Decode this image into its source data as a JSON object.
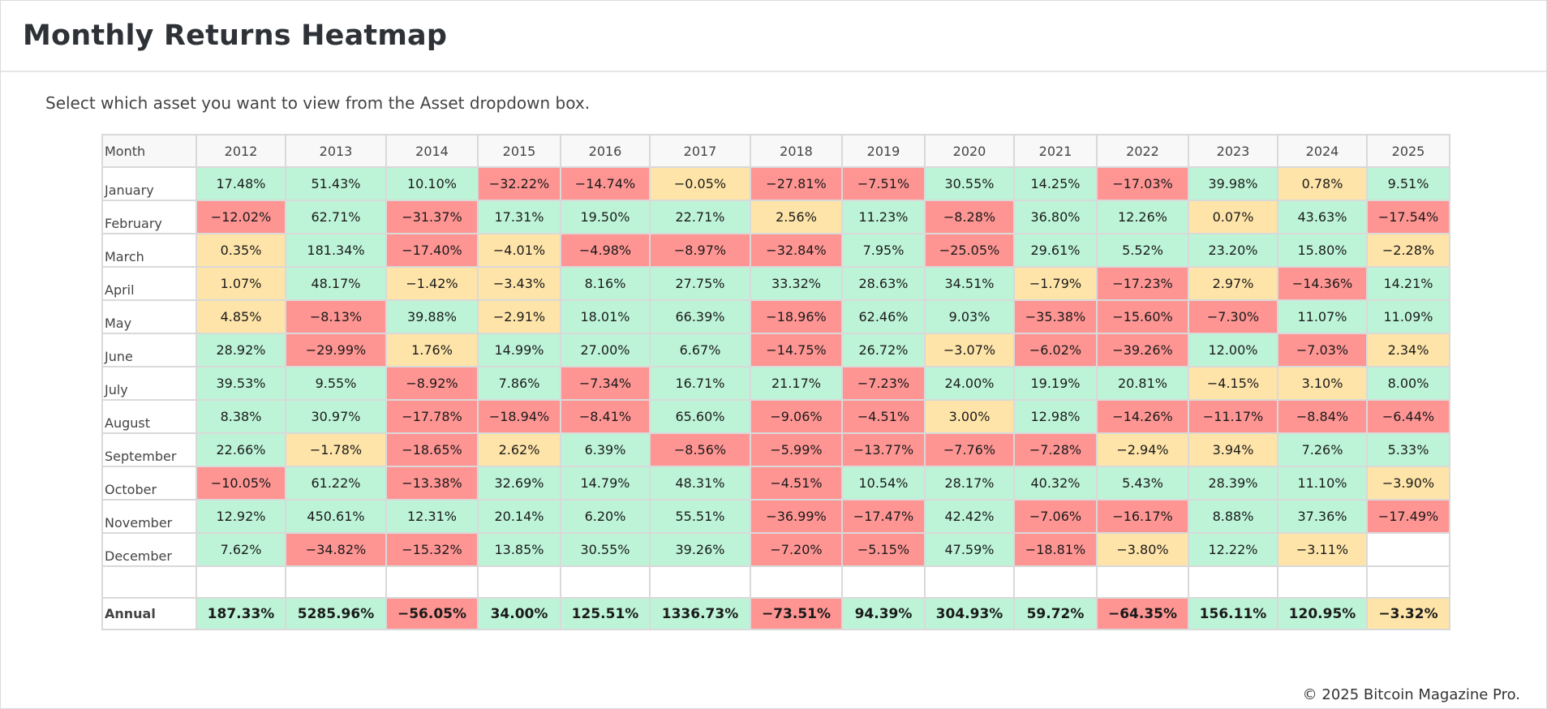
{
  "header": {
    "title": "Monthly Returns Heatmap"
  },
  "subtitle": "Select which asset you want to view from the Asset dropdown box.",
  "footer": "© 2025 Bitcoin Magazine Pro.",
  "colors": {
    "positive": "#bdf4d7",
    "neutral": "#fee4a8",
    "negative": "#fe9593"
  },
  "chart_data": {
    "type": "heatmap",
    "title": "Monthly Returns Heatmap",
    "row_header": "Month",
    "columns": [
      "2012",
      "2013",
      "2014",
      "2015",
      "2016",
      "2017",
      "2018",
      "2019",
      "2020",
      "2021",
      "2022",
      "2023",
      "2024",
      "2025"
    ],
    "rows": [
      {
        "month": "January",
        "values": [
          "17.48%",
          "51.43%",
          "10.10%",
          "−32.22%",
          "−14.74%",
          "−0.05%",
          "−27.81%",
          "−7.51%",
          "30.55%",
          "14.25%",
          "−17.03%",
          "39.98%",
          "0.78%",
          "9.51%"
        ]
      },
      {
        "month": "February",
        "values": [
          "−12.02%",
          "62.71%",
          "−31.37%",
          "17.31%",
          "19.50%",
          "22.71%",
          "2.56%",
          "11.23%",
          "−8.28%",
          "36.80%",
          "12.26%",
          "0.07%",
          "43.63%",
          "−17.54%"
        ]
      },
      {
        "month": "March",
        "values": [
          "0.35%",
          "181.34%",
          "−17.40%",
          "−4.01%",
          "−4.98%",
          "−8.97%",
          "−32.84%",
          "7.95%",
          "−25.05%",
          "29.61%",
          "5.52%",
          "23.20%",
          "15.80%",
          "−2.28%"
        ]
      },
      {
        "month": "April",
        "values": [
          "1.07%",
          "48.17%",
          "−1.42%",
          "−3.43%",
          "8.16%",
          "27.75%",
          "33.32%",
          "28.63%",
          "34.51%",
          "−1.79%",
          "−17.23%",
          "2.97%",
          "−14.36%",
          "14.21%"
        ]
      },
      {
        "month": "May",
        "values": [
          "4.85%",
          "−8.13%",
          "39.88%",
          "−2.91%",
          "18.01%",
          "66.39%",
          "−18.96%",
          "62.46%",
          "9.03%",
          "−35.38%",
          "−15.60%",
          "−7.30%",
          "11.07%",
          "11.09%"
        ]
      },
      {
        "month": "June",
        "values": [
          "28.92%",
          "−29.99%",
          "1.76%",
          "14.99%",
          "27.00%",
          "6.67%",
          "−14.75%",
          "26.72%",
          "−3.07%",
          "−6.02%",
          "−39.26%",
          "12.00%",
          "−7.03%",
          "2.34%"
        ]
      },
      {
        "month": "July",
        "values": [
          "39.53%",
          "9.55%",
          "−8.92%",
          "7.86%",
          "−7.34%",
          "16.71%",
          "21.17%",
          "−7.23%",
          "24.00%",
          "19.19%",
          "20.81%",
          "−4.15%",
          "3.10%",
          "8.00%"
        ]
      },
      {
        "month": "August",
        "values": [
          "8.38%",
          "30.97%",
          "−17.78%",
          "−18.94%",
          "−8.41%",
          "65.60%",
          "−9.06%",
          "−4.51%",
          "3.00%",
          "12.98%",
          "−14.26%",
          "−11.17%",
          "−8.84%",
          "−6.44%"
        ]
      },
      {
        "month": "September",
        "values": [
          "22.66%",
          "−1.78%",
          "−18.65%",
          "2.62%",
          "6.39%",
          "−8.56%",
          "−5.99%",
          "−13.77%",
          "−7.76%",
          "−7.28%",
          "−2.94%",
          "3.94%",
          "7.26%",
          "5.33%"
        ]
      },
      {
        "month": "October",
        "values": [
          "−10.05%",
          "61.22%",
          "−13.38%",
          "32.69%",
          "14.79%",
          "48.31%",
          "−4.51%",
          "10.54%",
          "28.17%",
          "40.32%",
          "5.43%",
          "28.39%",
          "11.10%",
          "−3.90%"
        ]
      },
      {
        "month": "November",
        "values": [
          "12.92%",
          "450.61%",
          "12.31%",
          "20.14%",
          "6.20%",
          "55.51%",
          "−36.99%",
          "−17.47%",
          "42.42%",
          "−7.06%",
          "−16.17%",
          "8.88%",
          "37.36%",
          "−17.49%"
        ]
      },
      {
        "month": "December",
        "values": [
          "7.62%",
          "−34.82%",
          "−15.32%",
          "13.85%",
          "30.55%",
          "39.26%",
          "−7.20%",
          "−5.15%",
          "47.59%",
          "−18.81%",
          "−3.80%",
          "12.22%",
          "−3.11%",
          ""
        ]
      }
    ],
    "annual": {
      "label": "Annual",
      "values": [
        "187.33%",
        "5285.96%",
        "−56.05%",
        "34.00%",
        "125.51%",
        "1336.73%",
        "−73.51%",
        "94.39%",
        "304.93%",
        "59.72%",
        "−64.35%",
        "156.11%",
        "120.95%",
        "−3.32%"
      ]
    }
  }
}
